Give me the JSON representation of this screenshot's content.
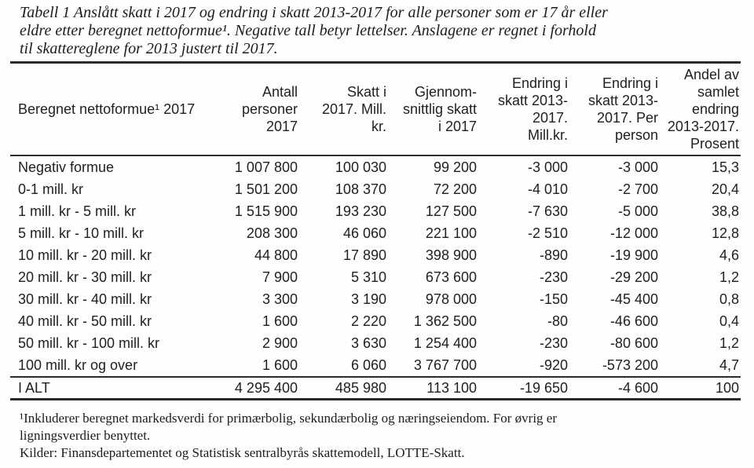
{
  "title_lines": [
    "Tabell 1 Anslått skatt i 2017 og endring i skatt 2013-2017 for alle personer som er 17 år eller",
    "eldre etter beregnet nettoformue¹. Negative tall betyr lettelser. Anslagene er regnet i forhold",
    "til skattereglene for 2013 justert til 2017."
  ],
  "table": {
    "headers": [
      "Beregnet nettoformue¹ 2017",
      "Antall\npersoner\n2017",
      "Skatt i\n2017. Mill.\nkr.",
      "Gjennom-\nsnittlig skatt\ni 2017",
      "Endring i\nskatt 2013-\n2017.\nMill.kr.",
      "Endring i\nskatt 2013-\n2017. Per\nperson",
      "Andel av\nsamlet\nendring\n2013-2017.\nProsent"
    ],
    "rows": [
      [
        "Negativ formue",
        "1 007 800",
        "100 030",
        "99 200",
        "-3 000",
        "-3 000",
        "15,3"
      ],
      [
        "0-1 mill. kr",
        "1 501 200",
        "108 370",
        "72 200",
        "-4 010",
        "-2 700",
        "20,4"
      ],
      [
        "1 mill. kr - 5 mill. kr",
        "1 515 900",
        "193 230",
        "127 500",
        "-7 630",
        "-5 000",
        "38,8"
      ],
      [
        "5 mill. kr - 10 mill. kr",
        "208 300",
        "46 060",
        "221 100",
        "-2 510",
        "-12 000",
        "12,8"
      ],
      [
        "10 mill. kr - 20 mill. kr",
        "44 800",
        "17 890",
        "398 900",
        "-890",
        "-19 900",
        "4,6"
      ],
      [
        "20 mill. kr - 30 mill. kr",
        "7 900",
        "5 310",
        "673 600",
        "-230",
        "-29 200",
        "1,2"
      ],
      [
        "30 mill. kr - 40 mill. kr",
        "3 300",
        "3 190",
        "978 000",
        "-150",
        "-45 400",
        "0,8"
      ],
      [
        "40 mill. kr - 50 mill. kr",
        "1 600",
        "2 220",
        "1 362 500",
        "-80",
        "-46 600",
        "0,4"
      ],
      [
        "50 mill. kr - 100 mill. kr",
        "2 900",
        "3 630",
        "1 254 400",
        "-230",
        "-80 600",
        "1,2"
      ],
      [
        "100 mill. kr og over",
        "1 600",
        "6 060",
        "3 767 700",
        "-920",
        "-573 200",
        "4,7"
      ]
    ],
    "total": [
      "I ALT",
      "4 295 400",
      "485 980",
      "113 100",
      "-19 650",
      "-4 600",
      "100"
    ]
  },
  "footnotes": [
    "¹Inkluderer beregnet markedsverdi for primærbolig, sekundærbolig og næringseiendom. For øvrig er",
    "ligningsverdier benyttet.",
    "Kilder: Finansdepartementet og Statistisk sentralbyrås skattemodell, LOTTE-Skatt."
  ]
}
